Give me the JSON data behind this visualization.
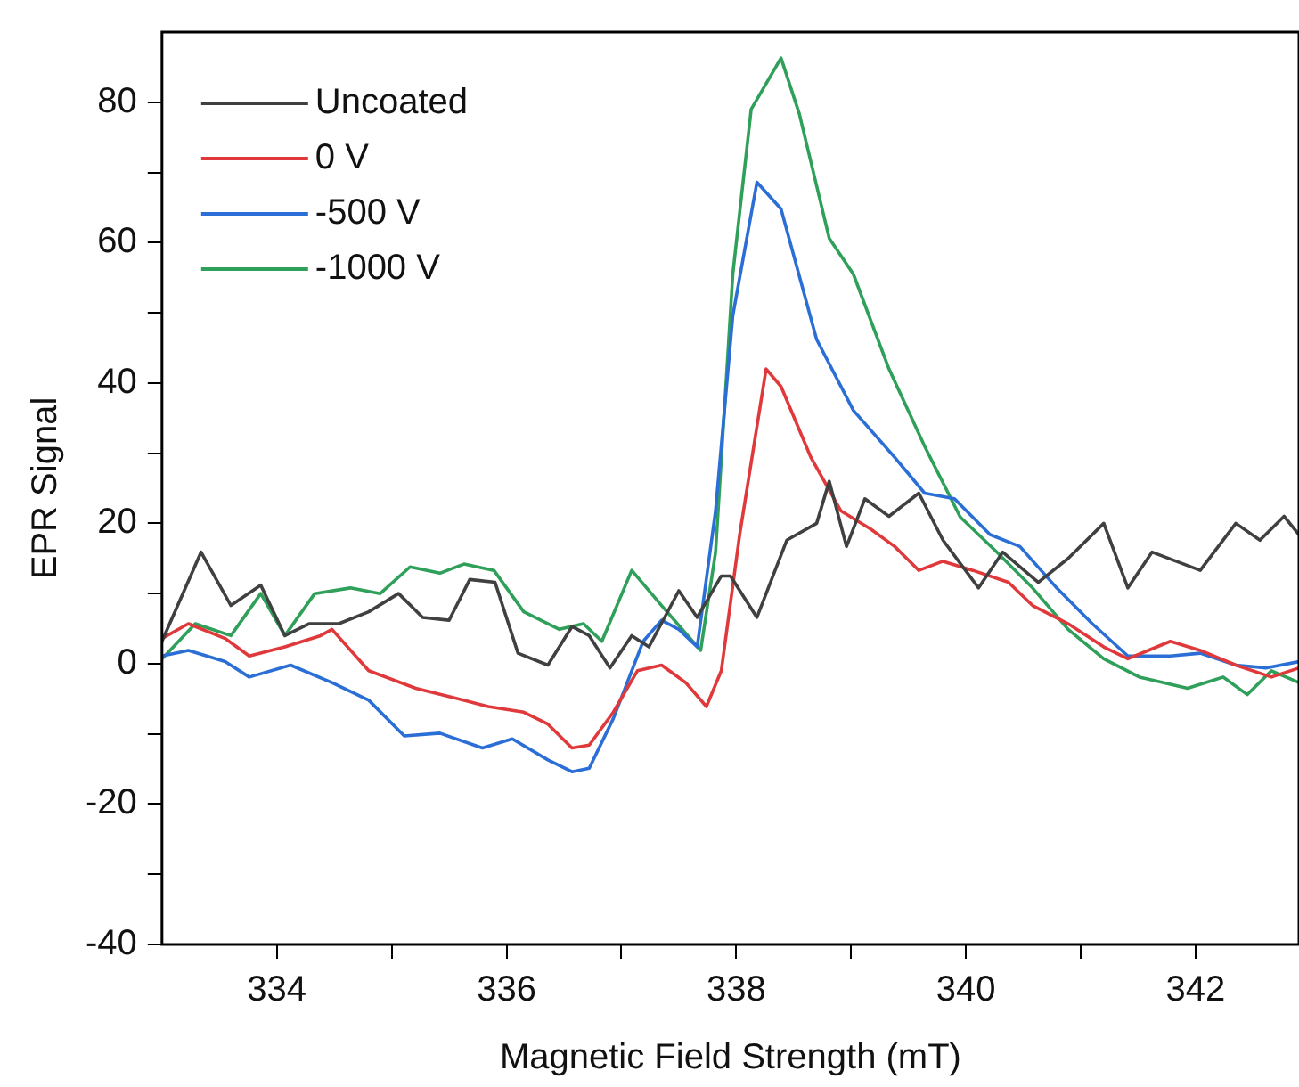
{
  "chart_data": {
    "type": "line",
    "xlabel": "Magnetic Field Strength (mT)",
    "ylabel": "EPR Signal",
    "xlim": [
      333,
      342.9
    ],
    "xticks": [
      334,
      {
        "value": 335,
        "label": null
      },
      336,
      {
        "value": 337,
        "label": null
      },
      338,
      {
        "value": 339,
        "label": null
      },
      340,
      {
        "value": 341,
        "label": null
      },
      342
    ],
    "ylim": [
      -40,
      90
    ],
    "yticks": [
      -40,
      {
        "value": -30,
        "label": null
      },
      -20,
      {
        "value": -10,
        "label": null
      },
      0,
      {
        "value": 10,
        "label": null
      },
      20,
      {
        "value": 30,
        "label": null
      },
      40,
      {
        "value": 50,
        "label": null
      },
      60,
      {
        "value": 70,
        "label": null
      },
      80
    ],
    "grid": false,
    "legend": "top left",
    "marker": "none",
    "line_style": "solid",
    "series": [
      {
        "name": "Uncoated",
        "color": "#404040",
        "x": [
          333.0,
          333.34,
          333.6,
          333.86,
          334.07,
          334.28,
          334.54,
          334.8,
          335.06,
          335.27,
          335.5,
          335.68,
          335.9,
          336.1,
          336.36,
          336.57,
          336.72,
          336.9,
          337.09,
          337.24,
          337.5,
          337.66,
          337.87,
          337.95,
          338.18,
          338.44,
          338.7,
          338.81,
          338.96,
          339.12,
          339.33,
          339.59,
          339.8,
          340.11,
          340.32,
          340.63,
          340.89,
          341.2,
          341.41,
          341.62,
          342.04,
          342.35,
          342.56,
          342.77,
          342.9
        ],
        "values": [
          3.2,
          15.9,
          8.3,
          11.2,
          4,
          5.7,
          5.7,
          7.4,
          10,
          6.6,
          6.2,
          12,
          11.6,
          1.5,
          -0.2,
          5.3,
          4,
          -0.6,
          4,
          2.4,
          10.4,
          6.6,
          12.5,
          12.5,
          6.6,
          17.6,
          20,
          26,
          16.7,
          23.5,
          21,
          24.3,
          17.6,
          10.8,
          15.9,
          11.6,
          15,
          20,
          10.8,
          15.9,
          13.3,
          20,
          17.6,
          21,
          18.4
        ]
      },
      {
        "name": "0 V",
        "color": "#e0393b",
        "x": [
          333.0,
          333.23,
          333.55,
          333.76,
          334.07,
          334.38,
          334.48,
          334.8,
          335.21,
          335.53,
          335.84,
          336.15,
          336.36,
          336.57,
          336.72,
          336.93,
          337.14,
          337.35,
          337.56,
          337.74,
          337.87,
          338.03,
          338.26,
          338.39,
          338.65,
          338.91,
          339.17,
          339.38,
          339.59,
          339.8,
          340.06,
          340.37,
          340.58,
          340.89,
          341.2,
          341.41,
          341.78,
          342.04,
          342.35,
          342.66,
          342.9
        ],
        "values": [
          3.6,
          5.7,
          3.6,
          1.1,
          2.4,
          4,
          4.9,
          -1,
          -3.5,
          -4.8,
          -6.1,
          -6.9,
          -8.6,
          -12,
          -11.6,
          -6.9,
          -1,
          -0.2,
          -2.7,
          -6.1,
          -1,
          18.4,
          42,
          39.5,
          29.4,
          21.8,
          19.2,
          16.7,
          13.3,
          14.6,
          13.3,
          11.6,
          8.3,
          5.7,
          2.4,
          0.7,
          3.2,
          1.9,
          -0.2,
          -1.9,
          -0.6
        ]
      },
      {
        "name": "-500 V",
        "color": "#2b6fd6",
        "x": [
          333.0,
          333.23,
          333.55,
          333.76,
          334.12,
          334.48,
          334.8,
          335.11,
          335.42,
          335.79,
          336.05,
          336.36,
          336.57,
          336.72,
          336.93,
          337.19,
          337.35,
          337.5,
          337.66,
          337.82,
          337.97,
          338.18,
          338.39,
          338.7,
          339.02,
          339.38,
          339.64,
          339.9,
          340.21,
          340.47,
          340.79,
          341.1,
          341.41,
          341.78,
          342.04,
          342.35,
          342.61,
          342.9
        ],
        "values": [
          1.1,
          1.9,
          0.3,
          -1.9,
          -0.2,
          -2.7,
          -5.2,
          -10.3,
          -9.9,
          -12,
          -10.7,
          -13.7,
          -15.4,
          -14.9,
          -7.8,
          3.2,
          6.2,
          4.9,
          2.4,
          21.8,
          49.6,
          68.6,
          64.8,
          46.2,
          36.1,
          29.4,
          24.3,
          23.5,
          18.4,
          16.7,
          10.8,
          5.7,
          1.1,
          1.1,
          1.5,
          -0.2,
          -0.6,
          0.3
        ]
      },
      {
        "name": "-1000 V",
        "color": "#2fa05a",
        "x": [
          333.0,
          333.29,
          333.6,
          333.86,
          334.07,
          334.33,
          334.64,
          334.9,
          335.16,
          335.42,
          335.63,
          335.89,
          336.15,
          336.46,
          336.67,
          336.83,
          337.09,
          337.35,
          337.69,
          337.82,
          337.97,
          338.13,
          338.39,
          338.55,
          338.81,
          339.02,
          339.33,
          339.64,
          339.95,
          340.27,
          340.58,
          340.89,
          341.2,
          341.51,
          341.93,
          342.24,
          342.45,
          342.66,
          342.9
        ],
        "values": [
          0.7,
          5.7,
          4,
          10,
          4,
          10,
          10.8,
          10,
          13.8,
          12.9,
          14.2,
          13.3,
          7.4,
          4.9,
          5.7,
          3.2,
          13.3,
          8.3,
          1.9,
          15.9,
          55.5,
          79,
          86.3,
          78.3,
          60.6,
          55.5,
          42,
          31,
          20.9,
          15.9,
          10.8,
          4.9,
          0.7,
          -1.9,
          -3.5,
          -1.9,
          -4.4,
          -1,
          -2.7
        ]
      }
    ]
  }
}
